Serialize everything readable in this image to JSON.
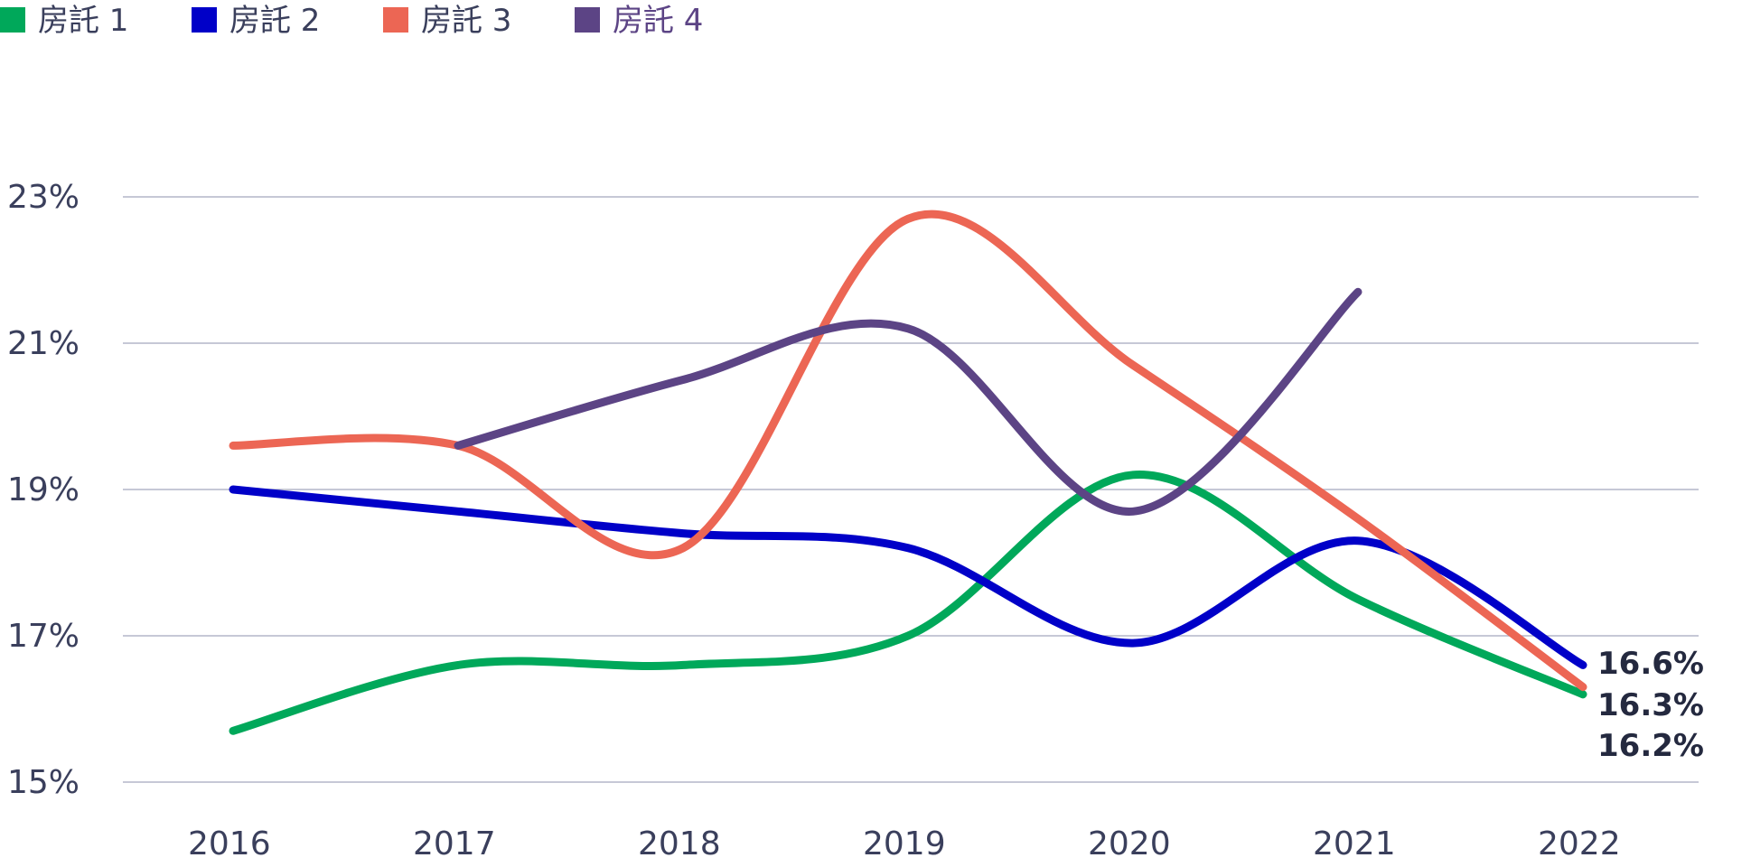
{
  "chart_data": {
    "type": "line",
    "x": [
      "2016",
      "2017",
      "2018",
      "2019",
      "2020",
      "2021",
      "2022"
    ],
    "ylim": [
      15,
      23
    ],
    "yticks": [
      "15%",
      "17%",
      "19%",
      "21%",
      "23%"
    ],
    "grid": true,
    "legend_position": "top-left",
    "series": [
      {
        "name": "房託 1",
        "color": "#00A85A",
        "values": [
          15.7,
          16.6,
          16.6,
          17.0,
          19.2,
          17.5,
          16.2
        ]
      },
      {
        "name": "房託 2",
        "color": "#0000C8",
        "values": [
          19.0,
          18.7,
          18.4,
          18.2,
          16.9,
          18.3,
          16.6
        ]
      },
      {
        "name": "房託 3",
        "color": "#EC6654",
        "values": [
          19.6,
          19.6,
          18.2,
          22.7,
          20.7,
          18.6,
          16.3
        ]
      },
      {
        "name": "房託 4",
        "color": "#5C4485",
        "values": [
          null,
          19.6,
          20.5,
          21.2,
          18.7,
          21.7,
          null
        ]
      }
    ],
    "end_labels": [
      "16.6%",
      "16.3%",
      "16.2%"
    ]
  }
}
